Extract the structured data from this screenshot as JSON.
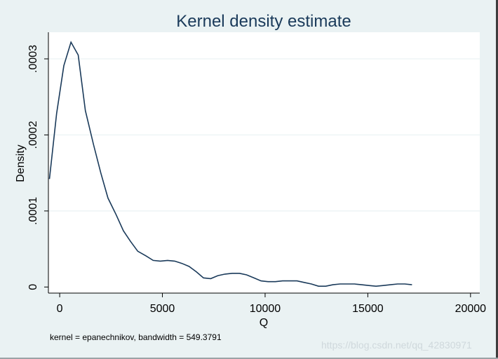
{
  "chart_data": {
    "type": "line",
    "title": "Kernel density estimate",
    "xlabel": "Q",
    "ylabel": "Density",
    "note": "kernel = epanechnikov, bandwidth = 549.3791",
    "xlim": [
      -550,
      20450
    ],
    "ylim": [
      -8e-06,
      0.000335
    ],
    "x_ticks": [
      0,
      5000,
      10000,
      15000,
      20000
    ],
    "x_tick_labels": [
      "0",
      "5000",
      "10000",
      "15000",
      "20000"
    ],
    "y_ticks": [
      0,
      0.0001,
      0.0002,
      0.0003
    ],
    "y_tick_labels": [
      "0",
      ".0001",
      ".0002",
      ".0003"
    ],
    "grid": true,
    "series": [
      {
        "color": "#1a3a5a",
        "x": [
          -500,
          -150,
          200,
          550,
          900,
          1250,
          1650,
          2000,
          2350,
          2750,
          3100,
          3450,
          3800,
          4200,
          4550,
          4900,
          5250,
          5600,
          5950,
          6300,
          6650,
          7000,
          7350,
          7700,
          8050,
          8400,
          8750,
          9100,
          9450,
          9800,
          10150,
          10500,
          10850,
          11200,
          11550,
          11900,
          12250,
          12600,
          12950,
          13300,
          13650,
          14000,
          14350,
          14700,
          15050,
          15400,
          15750,
          16100,
          16450,
          16800,
          17150
        ],
        "y": [
          0.000142,
          0.000228,
          0.000291,
          0.000322,
          0.000305,
          0.000232,
          0.000187,
          0.00015,
          0.000117,
          9.5e-05,
          7.4e-05,
          6e-05,
          4.7e-05,
          4.1e-05,
          3.5e-05,
          3.4e-05,
          3.5e-05,
          3.4e-05,
          3.1e-05,
          2.7e-05,
          2e-05,
          1.2e-05,
          1.1e-05,
          1.5e-05,
          1.7e-05,
          1.8e-05,
          1.8e-05,
          1.6e-05,
          1.2e-05,
          8e-06,
          7e-06,
          7e-06,
          8e-06,
          8e-06,
          8e-06,
          6e-06,
          4e-06,
          1e-06,
          1e-06,
          3e-06,
          4e-06,
          4e-06,
          4e-06,
          3e-06,
          2e-06,
          1e-06,
          2e-06,
          3e-06,
          4e-06,
          4e-06,
          3e-06
        ]
      }
    ]
  },
  "watermark": "https://blog.csdn.net/qq_42830971",
  "colors": {
    "outer_background": "#eaf2f3",
    "plot_background": "#ffffff",
    "line": "#1a3a5a",
    "grid": "#eaf2f3"
  }
}
